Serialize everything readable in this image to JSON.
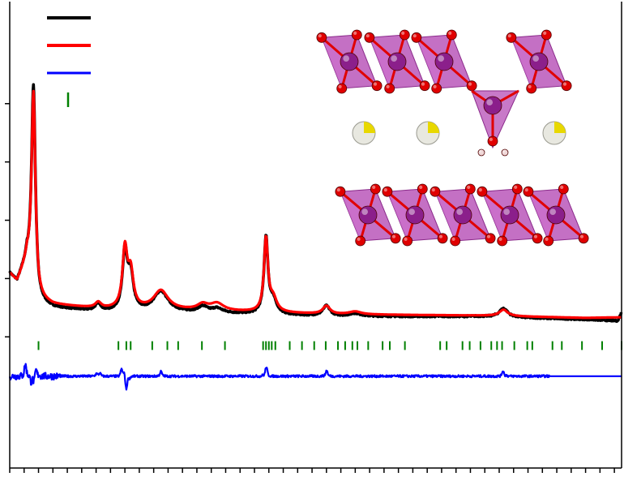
{
  "chart_data": {
    "type": "line",
    "title": "",
    "xlabel": "",
    "ylabel": "",
    "xlim": [
      5,
      90
    ],
    "ylim": [
      -0.45,
      1.15
    ],
    "y_major_ticks": [
      0,
      0.2,
      0.4,
      0.6,
      0.8
    ],
    "x_major_ticks": [
      10,
      20,
      30,
      40,
      50,
      60,
      70,
      80,
      90
    ],
    "x_minor_step": 2,
    "grid": false,
    "legend": {
      "placement": "top-left",
      "entries": [
        {
          "label": "",
          "style": "line",
          "color": "#000000"
        },
        {
          "label": "",
          "style": "line",
          "color": "#ff0000"
        },
        {
          "label": "",
          "style": "line",
          "color": "#0000ff"
        },
        {
          "label": "",
          "style": "tick",
          "color": "#008000"
        }
      ]
    },
    "series": [
      {
        "role": "observed",
        "color": "#000000",
        "baseline": 0.055,
        "background": [
          [
            5,
            0.16
          ],
          [
            6,
            0.13
          ],
          [
            7.4,
            0.2
          ],
          [
            9,
            0.06
          ],
          [
            11,
            0.045
          ],
          [
            18,
            0.03
          ],
          [
            25,
            0.03
          ],
          [
            35,
            0.025
          ],
          [
            50,
            0.015
          ],
          [
            70,
            0.015
          ],
          [
            85,
            0.005
          ],
          [
            89.5,
            0.0
          ],
          [
            90,
            0.03
          ]
        ],
        "peaks": [
          {
            "x": 8.3,
            "h": 0.69,
            "w": 0.32
          },
          {
            "x": 17.3,
            "h": 0.025,
            "w": 0.5
          },
          {
            "x": 21.0,
            "h": 0.2,
            "w": 0.4
          },
          {
            "x": 21.8,
            "h": 0.12,
            "w": 0.45
          },
          {
            "x": 26.0,
            "h": 0.07,
            "w": 1.2
          },
          {
            "x": 31.8,
            "h": 0.02,
            "w": 0.8
          },
          {
            "x": 33.8,
            "h": 0.015,
            "w": 0.9
          },
          {
            "x": 40.6,
            "h": 0.26,
            "w": 0.33
          },
          {
            "x": 41.6,
            "h": 0.045,
            "w": 0.6
          },
          {
            "x": 49.0,
            "h": 0.035,
            "w": 0.6
          },
          {
            "x": 53.0,
            "h": 0.01,
            "w": 1.0
          },
          {
            "x": 73.6,
            "h": 0.03,
            "w": 0.7
          }
        ]
      },
      {
        "role": "calculated",
        "color": "#ff0000",
        "baseline": 0.055,
        "background": [
          [
            5,
            0.16
          ],
          [
            6,
            0.13
          ],
          [
            7.4,
            0.2
          ],
          [
            9,
            0.07
          ],
          [
            11,
            0.055
          ],
          [
            18,
            0.04
          ],
          [
            25,
            0.038
          ],
          [
            35,
            0.032
          ],
          [
            50,
            0.022
          ],
          [
            70,
            0.018
          ],
          [
            85,
            0.01
          ],
          [
            90,
            0.012
          ]
        ],
        "peaks": [
          {
            "x": 8.3,
            "h": 0.66,
            "w": 0.32
          },
          {
            "x": 17.3,
            "h": 0.02,
            "w": 0.5
          },
          {
            "x": 21.0,
            "h": 0.2,
            "w": 0.4
          },
          {
            "x": 21.8,
            "h": 0.12,
            "w": 0.45
          },
          {
            "x": 26.0,
            "h": 0.065,
            "w": 1.2
          },
          {
            "x": 31.8,
            "h": 0.02,
            "w": 0.9
          },
          {
            "x": 33.8,
            "h": 0.025,
            "w": 1.1
          },
          {
            "x": 40.6,
            "h": 0.25,
            "w": 0.33
          },
          {
            "x": 41.6,
            "h": 0.045,
            "w": 0.6
          },
          {
            "x": 49.0,
            "h": 0.028,
            "w": 0.6
          },
          {
            "x": 53.0,
            "h": 0.01,
            "w": 1.0
          },
          {
            "x": 73.6,
            "h": 0.022,
            "w": 0.7
          }
        ]
      },
      {
        "role": "difference",
        "color": "#0000ff",
        "offset": -0.135,
        "features": [
          {
            "x": 7.2,
            "a": 0.025
          },
          {
            "x": 8.3,
            "a": -0.04
          },
          {
            "x": 8.6,
            "a": 0.03
          },
          {
            "x": 17.3,
            "a": 0.012
          },
          {
            "x": 20.8,
            "a": 0.035
          },
          {
            "x": 21.2,
            "a": -0.04
          },
          {
            "x": 26.0,
            "a": 0.01
          },
          {
            "x": 40.6,
            "a": 0.02
          },
          {
            "x": 49.0,
            "a": 0.012
          },
          {
            "x": 73.6,
            "a": 0.012
          }
        ]
      }
    ],
    "reflection_marks": {
      "color": "#008000",
      "y_range": [
        -0.045,
        -0.015
      ],
      "x": [
        9.0,
        20.1,
        21.2,
        21.8,
        24.8,
        26.9,
        28.4,
        31.7,
        34.9,
        40.2,
        40.6,
        41.0,
        41.4,
        41.9,
        43.9,
        45.6,
        47.3,
        48.9,
        50.6,
        51.6,
        52.6,
        53.3,
        54.8,
        56.8,
        57.8,
        59.9,
        64.8,
        65.7,
        67.9,
        68.9,
        70.4,
        71.9,
        72.7,
        73.4,
        75.1,
        76.9,
        77.6,
        80.4,
        81.7,
        84.5,
        87.3,
        90.0
      ]
    },
    "inset": {
      "description_hidden": true,
      "octahedron_fill": "#b040b0",
      "metal_color": "#8b1f8b",
      "oxygen_color": "#e00000",
      "cation_color": "#e8e8e0",
      "highlight_color": "#e8d800",
      "hydrogen_color": "#f0d8d8"
    }
  }
}
